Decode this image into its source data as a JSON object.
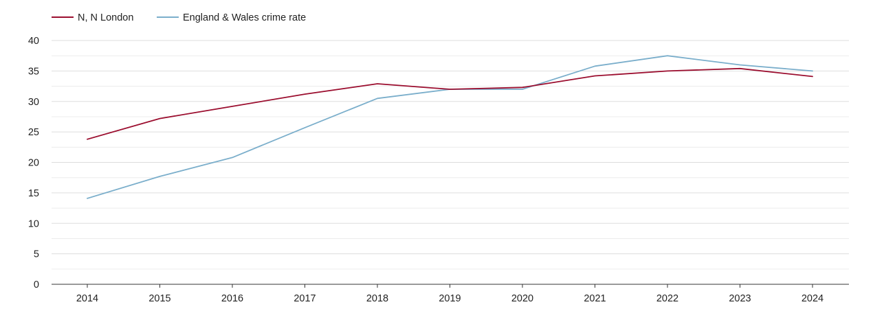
{
  "chart_data": {
    "type": "line",
    "categories": [
      "2014",
      "2015",
      "2016",
      "2017",
      "2018",
      "2019",
      "2020",
      "2021",
      "2022",
      "2023",
      "2024"
    ],
    "series": [
      {
        "name": "N, N London",
        "color": "#9b0d2e",
        "values": [
          23.8,
          27.2,
          29.2,
          31.2,
          32.9,
          32.0,
          32.3,
          34.2,
          35.0,
          35.4,
          34.1
        ]
      },
      {
        "name": "England & Wales crime rate",
        "color": "#7aaecb",
        "values": [
          14.1,
          17.7,
          20.8,
          25.7,
          30.5,
          32.0,
          32.0,
          35.8,
          37.5,
          36.0,
          35.0
        ]
      }
    ],
    "ylim": [
      0,
      40
    ],
    "yticks": [
      0,
      5,
      10,
      15,
      20,
      25,
      30,
      35,
      40
    ],
    "title": "",
    "xlabel": "",
    "ylabel": "",
    "grid": true,
    "legend_position": "top-left",
    "grid_color": "#dddddd",
    "axis_color": "#333333"
  }
}
